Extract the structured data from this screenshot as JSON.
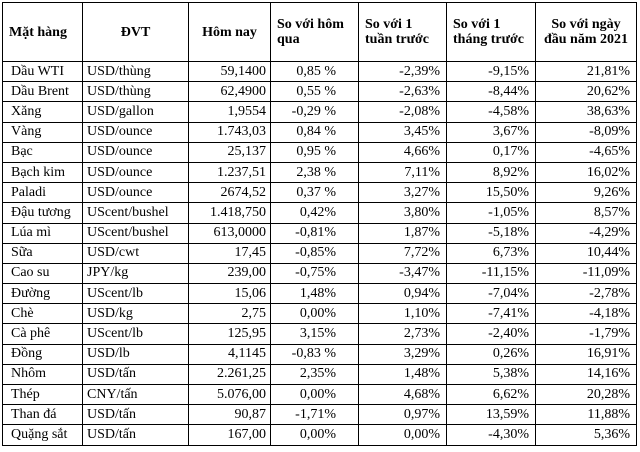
{
  "table": {
    "headers": [
      "Mặt hàng",
      "ĐVT",
      "Hôm nay",
      "So với hôm qua",
      "So với 1 tuần trước",
      "So với 1 tháng trước",
      "So với ngày đầu năm 2021"
    ],
    "rows": [
      [
        "Dầu WTI",
        "USD/thùng",
        "59,1400",
        "0,85 %",
        "-2,39%",
        "-9,15%",
        "21,81%"
      ],
      [
        "Dầu Brent",
        "USD/thùng",
        "62,4900",
        "0,55 %",
        "-2,63%",
        "-8,44%",
        "20,62%"
      ],
      [
        "Xăng",
        "USD/gallon",
        "1,9554",
        "-0,29 %",
        "-2,08%",
        "-4,58%",
        "38,63%"
      ],
      [
        "Vàng",
        "USD/ounce",
        "1.743,03",
        "0,84 %",
        "3,45%",
        "3,67%",
        "-8,09%"
      ],
      [
        "Bạc",
        "USD/ounce",
        "25,137",
        "0,95 %",
        "4,66%",
        "0,17%",
        "-4,65%"
      ],
      [
        "Bạch kim",
        "USD/ounce",
        "1.237,51",
        "2,38 %",
        "7,11%",
        "8,92%",
        "16,02%"
      ],
      [
        "Paladi",
        "USD/ounce",
        "2674,52",
        "0,37 %",
        "3,27%",
        "15,50%",
        "9,26%"
      ],
      [
        "Đậu tương",
        "UScent/bushel",
        "1.418,750",
        "0,42%",
        "3,80%",
        "-1,05%",
        "8,57%"
      ],
      [
        "Lúa mì",
        "UScent/bushel",
        "613,0000",
        "-0,81%",
        "1,87%",
        "-5,18%",
        "-4,29%"
      ],
      [
        "Sữa",
        "USD/cwt",
        "17,45",
        "-0,85%",
        "7,72%",
        "6,73%",
        "10,44%"
      ],
      [
        "Cao su",
        "JPY/kg",
        "239,00",
        "-0,75%",
        "-3,47%",
        "-11,15%",
        "-11,09%"
      ],
      [
        "Đường",
        "UScent/lb",
        "15,06",
        "1,48%",
        "0,94%",
        "-7,04%",
        "-2,78%"
      ],
      [
        "Chè",
        "USD/kg",
        "2,75",
        "0,00%",
        "1,10%",
        "-7,41%",
        "-4,18%"
      ],
      [
        "Cà phê",
        "UScent/lb",
        "125,95",
        "3,15%",
        "2,73%",
        "-2,40%",
        "-1,79%"
      ],
      [
        "Đồng",
        "USD/lb",
        "4,1145",
        "-0,83 %",
        "3,29%",
        "0,26%",
        "16,91%"
      ],
      [
        "Nhôm",
        "USD/tấn",
        "2.261,25",
        "2,35%",
        "1,48%",
        "5,38%",
        "14,16%"
      ],
      [
        "Thép",
        "CNY/tấn",
        "5.076,00",
        "0,00%",
        "4,68%",
        "6,62%",
        "20,28%"
      ],
      [
        "Than đá",
        "USD/tấn",
        "90,87",
        "-1,71%",
        "0,97%",
        "13,59%",
        "11,88%"
      ],
      [
        "Quặng sắt",
        "USD/tấn",
        "167,00",
        "0,00%",
        "0,00%",
        "-4,30%",
        "5,36%"
      ]
    ]
  }
}
